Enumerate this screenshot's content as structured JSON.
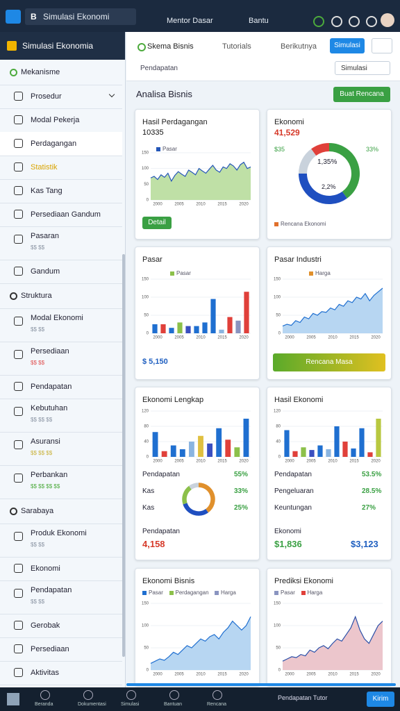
{
  "header": {
    "app_title": "Simulasi Ekonomi",
    "menu": [
      "Mentor Dasar",
      "Bantu"
    ]
  },
  "sidebar": {
    "title": "Simulasi Ekonomia",
    "items": [
      {
        "kind": "section",
        "label": "Mekanisme"
      },
      {
        "kind": "item",
        "label": "Prosedur"
      },
      {
        "kind": "item",
        "label": "Modal Pekerja"
      },
      {
        "kind": "item",
        "label": "Perdagangan"
      },
      {
        "kind": "item",
        "label": "Statistik"
      },
      {
        "kind": "item",
        "label": "Kas Tang"
      },
      {
        "kind": "item",
        "label": "Persediaan Gandum"
      },
      {
        "kind": "item",
        "label": "Pasaran",
        "sub": "$$ $$",
        "sub_color": "#8a94a3"
      },
      {
        "kind": "item",
        "label": "Gandum"
      },
      {
        "kind": "section",
        "label": "Struktura"
      },
      {
        "kind": "item",
        "label": "Modal Ekonomi",
        "sub": "$$ $$",
        "sub_color": "#8a94a3"
      },
      {
        "kind": "item",
        "label": "Persediaan",
        "sub": "$$ $$",
        "sub_color": "#e05050"
      },
      {
        "kind": "item",
        "label": "Pendapatan"
      },
      {
        "kind": "item",
        "label": "Kebutuhan",
        "sub": "$$ $$ $$",
        "sub_color": "#8a94a3"
      },
      {
        "kind": "item",
        "label": "Asuransi",
        "sub": "$$ $$ $$",
        "sub_color": "#c9b23a"
      },
      {
        "kind": "item",
        "label": "Perbankan",
        "sub": "$$ $$ $$ $$",
        "sub_color": "#4caa3c"
      },
      {
        "kind": "section",
        "label": "Sarabaya"
      },
      {
        "kind": "item",
        "label": "Produk Ekonomi",
        "sub": "$$ $$",
        "sub_color": "#8a94a3"
      },
      {
        "kind": "item",
        "label": "Ekonomi"
      },
      {
        "kind": "item",
        "label": "Pendapatan",
        "sub": "$$ $$",
        "sub_color": "#8a94a3"
      },
      {
        "kind": "item",
        "label": "Gerobak"
      },
      {
        "kind": "item",
        "label": "Persediaan"
      },
      {
        "kind": "item",
        "label": "Aktivitas"
      }
    ]
  },
  "toolbar": {
    "tabs": [
      "Skema Bisnis",
      "Tutorials",
      "Berikutnya"
    ],
    "button": "Simulasi",
    "filter": "Pendapatan",
    "select": "Simulasi"
  },
  "section": {
    "title": "Analisa Bisnis",
    "button": "Buat Rencana"
  },
  "cards": [
    {
      "title": "Hasil Perdagangan",
      "value": "10335",
      "button": "Detail",
      "legend": [
        {
          "name": "Pasar",
          "color": "#2456b8"
        }
      ],
      "chart": {
        "type": "area",
        "color": "#2456b8",
        "fill": "#bfe0a6",
        "ylim": [
          0,
          150
        ],
        "yticks": [
          0,
          50,
          100,
          150
        ],
        "xlabels": [
          "2000",
          "2005",
          "2010",
          "2015",
          "2020"
        ],
        "values": [
          70,
          75,
          65,
          80,
          72,
          85,
          60,
          78,
          90,
          82,
          75,
          95,
          88,
          80,
          100,
          92,
          85,
          98,
          110,
          95,
          88,
          105,
          100,
          115,
          108,
          95,
          112,
          120,
          100,
          105
        ]
      }
    },
    {
      "title": "Ekonomi",
      "value": "41,529",
      "left": "$35",
      "right": "33%",
      "center": [
        "1,35%",
        "2,2%"
      ],
      "legend": [
        {
          "name": "Rencana Ekonomi",
          "color": "#e0702c"
        }
      ],
      "donut": {
        "values": [
          40,
          35,
          15,
          10
        ],
        "colors": [
          "#3aa043",
          "#1f4fc0",
          "#c9d2dc",
          "#e0403a"
        ]
      }
    },
    {
      "title": "Pasar",
      "footer": "$ 5,150",
      "legend": [
        {
          "name": "Pasar",
          "color": "#8cc04a"
        }
      ],
      "chart": {
        "type": "bar",
        "ylim": [
          0,
          150
        ],
        "yticks": [
          0,
          50,
          100,
          150
        ],
        "xlabels": [
          "2000",
          "2005",
          "2010",
          "2015",
          "2020"
        ],
        "values": [
          25,
          25,
          15,
          30,
          20,
          20,
          30,
          95,
          10,
          45,
          35,
          115
        ],
        "colors": [
          "#1f6fd0",
          "#e0403a",
          "#1f6fd0",
          "#8cc04a",
          "#3a4fc0",
          "#1f6fd0",
          "#1f6fd0",
          "#1f6fd0",
          "#8ab4e0",
          "#e0403a",
          "#8a94c0",
          "#e0403a"
        ]
      }
    },
    {
      "title": "Pasar Industri",
      "button": "Rencana Masa",
      "legend": [
        {
          "name": "Harga",
          "color": "#e0902c"
        }
      ],
      "chart": {
        "type": "area",
        "color": "#1f6fd0",
        "fill": "#b7d6f2",
        "ylim": [
          0,
          150
        ],
        "yticks": [
          0,
          50,
          100,
          150
        ],
        "xlabels": [
          "2000",
          "2005",
          "2010",
          "2015",
          "2020"
        ],
        "values": [
          20,
          25,
          22,
          35,
          30,
          45,
          40,
          55,
          50,
          60,
          58,
          70,
          65,
          80,
          75,
          90,
          85,
          100,
          95,
          110,
          90,
          105,
          115,
          125
        ]
      }
    },
    {
      "title": "Ekonomi Lengkap",
      "rows": [
        [
          "Pendapatan",
          "55%"
        ],
        [
          "Kas",
          "33%"
        ],
        [
          "Kas",
          "25%"
        ]
      ],
      "footer_label": "Pendapatan",
      "footer_value": "4,158",
      "chart": {
        "type": "bar",
        "ylim": [
          0,
          120
        ],
        "yticks": [
          0,
          40,
          80,
          120
        ],
        "xlabels": [
          "2000",
          "2005",
          "2010",
          "2015",
          "2020"
        ],
        "values": [
          65,
          15,
          30,
          20,
          40,
          55,
          35,
          75,
          45,
          25,
          100
        ],
        "colors": [
          "#1f6fd0",
          "#e0403a",
          "#1f6fd0",
          "#1f6fd0",
          "#8ab4e0",
          "#e0c040",
          "#3a4fc0",
          "#1f6fd0",
          "#e0403a",
          "#8cc04a",
          "#1f6fd0"
        ]
      },
      "donut": {
        "values": [
          40,
          30,
          20,
          10
        ],
        "colors": [
          "#e0902c",
          "#1f4fc0",
          "#8cc04a",
          "#c9d2dc"
        ]
      }
    },
    {
      "title": "Hasil Ekonomi",
      "rows": [
        [
          "Pendapatan",
          "53.5%"
        ],
        [
          "Pengeluaran",
          "28.5%"
        ],
        [
          "Keuntungan",
          "27%"
        ]
      ],
      "footer_label": "Ekonomi",
      "footer_value": "$1,836",
      "footer_value2": "$3,123",
      "chart": {
        "type": "bar",
        "ylim": [
          0,
          120
        ],
        "yticks": [
          0,
          40,
          80,
          120
        ],
        "xlabels": [
          "2000",
          "2005",
          "2010",
          "2015",
          "2020"
        ],
        "values": [
          70,
          15,
          25,
          18,
          30,
          20,
          80,
          40,
          22,
          75,
          12,
          100
        ],
        "colors": [
          "#1f6fd0",
          "#e0403a",
          "#8cc04a",
          "#3a4fc0",
          "#1f6fd0",
          "#8ab4e0",
          "#1f6fd0",
          "#e0403a",
          "#1f6fd0",
          "#1f6fd0",
          "#e0403a",
          "#b8c840"
        ]
      }
    },
    {
      "title": "Ekonomi Bisnis",
      "legend": [
        {
          "name": "Pasar",
          "color": "#1f6fd0"
        },
        {
          "name": "Perdagangan",
          "color": "#8cc04a"
        },
        {
          "name": "Harga",
          "color": "#8a94c0"
        }
      ],
      "chart": {
        "type": "area",
        "color": "#1f6fd0",
        "fill": "#b7d6f2",
        "ylim": [
          0,
          150
        ],
        "yticks": [
          0,
          50,
          100,
          150
        ],
        "xlabels": [
          "2000",
          "2005",
          "2010",
          "2015",
          "2020"
        ],
        "values": [
          15,
          20,
          25,
          22,
          30,
          40,
          35,
          45,
          55,
          50,
          60,
          70,
          65,
          75,
          80,
          70,
          85,
          95,
          110,
          100,
          90,
          100,
          120
        ]
      }
    },
    {
      "title": "Prediksi Ekonomi",
      "legend": [
        {
          "name": "Pasar",
          "color": "#8a94c0"
        },
        {
          "name": "Harga",
          "color": "#e0403a"
        }
      ],
      "chart": {
        "type": "area",
        "color": "#2a4fa8",
        "fill": "#ecc6cc",
        "ylim": [
          0,
          150
        ],
        "yticks": [
          0,
          50,
          100,
          150
        ],
        "xlabels": [
          "2000",
          "2005",
          "2010",
          "2015",
          "2020"
        ],
        "values": [
          20,
          25,
          30,
          28,
          35,
          32,
          45,
          40,
          50,
          55,
          48,
          60,
          70,
          65,
          80,
          95,
          120,
          90,
          70,
          60,
          80,
          100,
          110
        ]
      }
    }
  ],
  "taskbar": {
    "items": [
      "Beranda",
      "Dokumentasi",
      "Simulasi",
      "Bantuan",
      "Rencana"
    ],
    "status": "Pendapatan Tutor",
    "button": "Kirim"
  }
}
